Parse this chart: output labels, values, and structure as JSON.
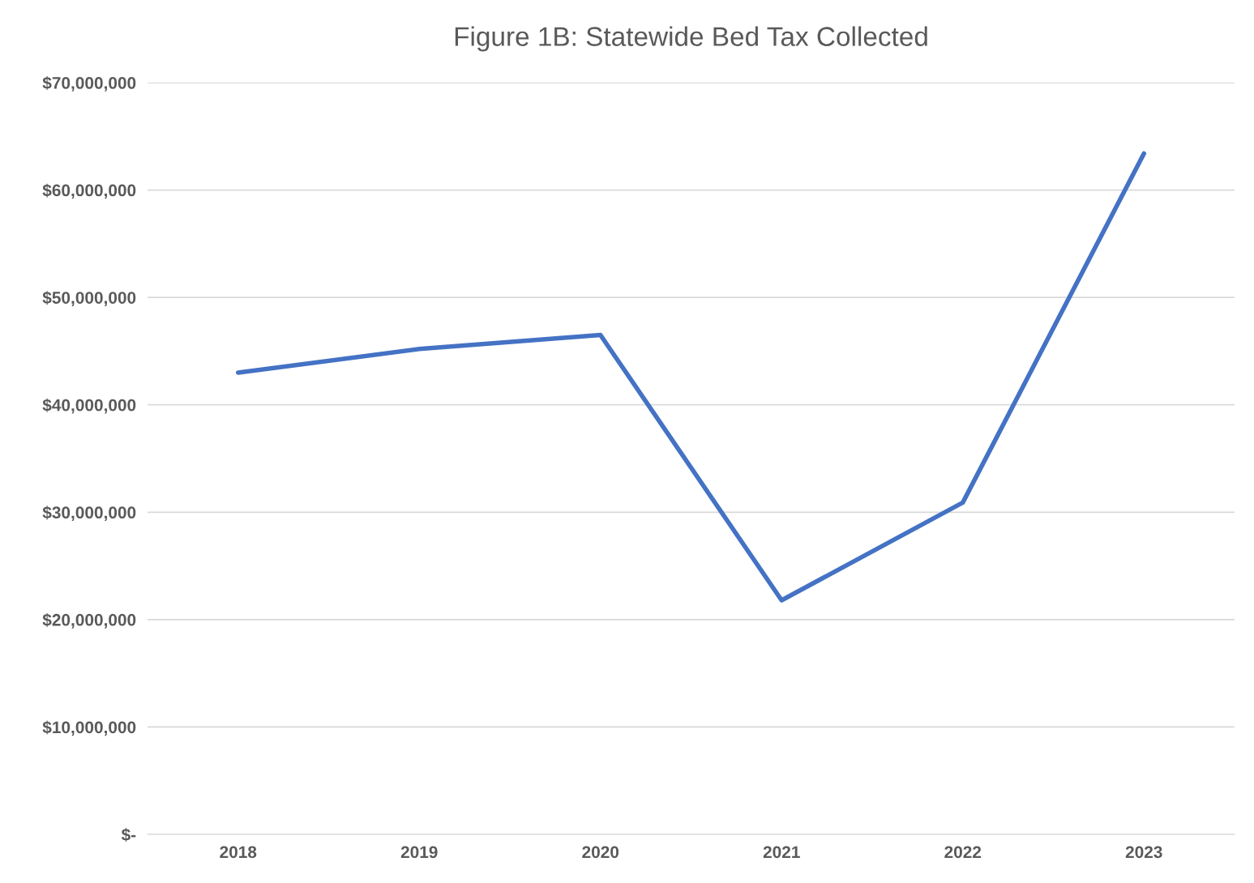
{
  "chart_data": {
    "type": "line",
    "title": "Figure 1B: Statewide Bed Tax Collected",
    "categories": [
      "2018",
      "2019",
      "2020",
      "2021",
      "2022",
      "2023"
    ],
    "series": [
      {
        "color": "#4472c4",
        "values": [
          43000000,
          45200000,
          46500000,
          21800000,
          30900000,
          63400000
        ]
      }
    ],
    "ylim": [
      0,
      70000000
    ],
    "yticks": [
      {
        "value": 0,
        "label": "$-"
      },
      {
        "value": 10000000,
        "label": "$10,000,000"
      },
      {
        "value": 20000000,
        "label": "$20,000,000"
      },
      {
        "value": 30000000,
        "label": "$30,000,000"
      },
      {
        "value": 40000000,
        "label": "$40,000,000"
      },
      {
        "value": 50000000,
        "label": "$50,000,000"
      },
      {
        "value": 60000000,
        "label": "$60,000,000"
      },
      {
        "value": 70000000,
        "label": "$70,000,000"
      }
    ],
    "grid": "y",
    "marker": "none",
    "line_style": "solid"
  }
}
